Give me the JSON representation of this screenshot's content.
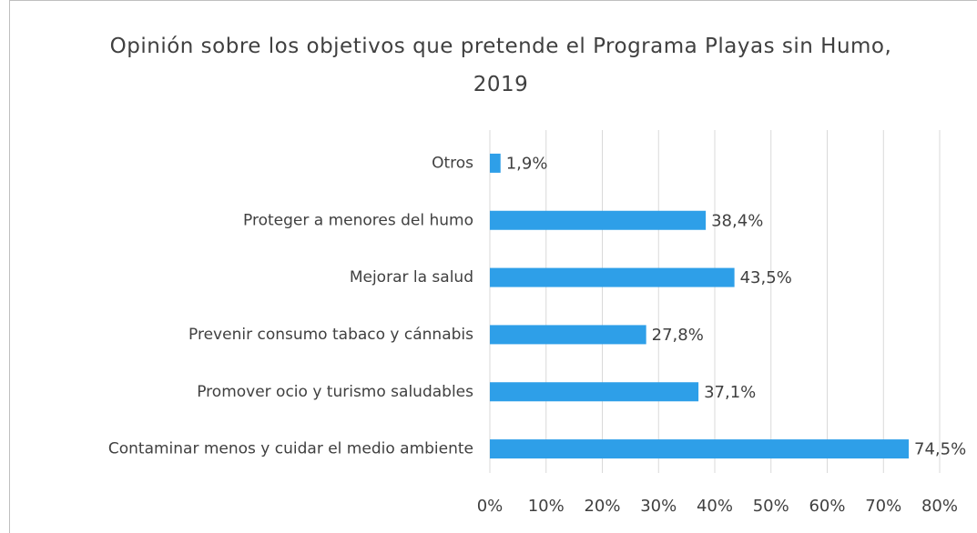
{
  "chart_data": {
    "type": "bar",
    "orientation": "horizontal",
    "title": "Opinión sobre los objetivos que pretende el Programa Playas sin Humo, 2019",
    "categories": [
      "Otros",
      "Proteger a menores del humo",
      "Mejorar la salud",
      "Prevenir consumo tabaco y cánnabis",
      "Promover ocio y turismo saludables",
      "Contaminar menos y cuidar el medio ambiente"
    ],
    "values": [
      1.9,
      38.4,
      43.5,
      27.8,
      37.1,
      74.5
    ],
    "value_labels": [
      "1,9%",
      "38,4%",
      "43,5%",
      "27,8%",
      "37,1%",
      "74,5%"
    ],
    "color": "#2e9fe8",
    "xlim": [
      0,
      80
    ],
    "xticks": [
      {
        "value": 0,
        "label": "0%"
      },
      {
        "value": 10,
        "label": "10%"
      },
      {
        "value": 20,
        "label": "20%"
      },
      {
        "value": 30,
        "label": "30%"
      },
      {
        "value": 40,
        "label": "40%"
      },
      {
        "value": 50,
        "label": "50%"
      },
      {
        "value": 60,
        "label": "60%"
      },
      {
        "value": 70,
        "label": "70%"
      },
      {
        "value": 80,
        "label": "80%"
      }
    ],
    "grid": true
  }
}
